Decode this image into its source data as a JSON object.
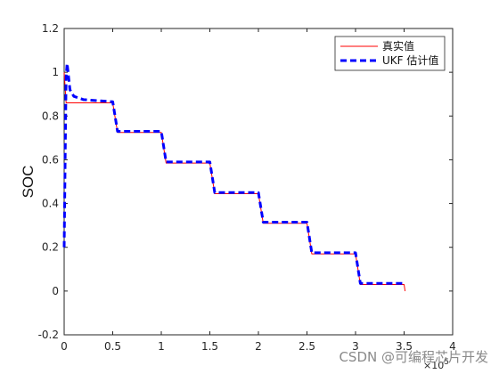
{
  "chart_data": {
    "type": "line",
    "ylabel": "SOC",
    "x_exponent_label": "×10",
    "x_exponent_power": "5",
    "xlim": [
      0,
      4
    ],
    "ylim": [
      -0.2,
      1.2
    ],
    "x_ticks": [
      "0",
      "0.5",
      "1",
      "1.5",
      "2",
      "2.5",
      "3",
      "3.5",
      "4"
    ],
    "y_ticks": [
      "-0.2",
      "0",
      "0.2",
      "0.4",
      "0.6",
      "0.8",
      "1",
      "1.2"
    ],
    "grid": false,
    "legend_position": "top-right",
    "series": [
      {
        "name": "真实值",
        "color": "#ff0000",
        "style": "solid",
        "points": [
          [
            0,
            1.0
          ],
          [
            0.02,
            0.86
          ],
          [
            0.5,
            0.86
          ],
          [
            0.55,
            0.725
          ],
          [
            1.0,
            0.725
          ],
          [
            1.05,
            0.585
          ],
          [
            1.5,
            0.585
          ],
          [
            1.55,
            0.445
          ],
          [
            2.0,
            0.445
          ],
          [
            2.05,
            0.31
          ],
          [
            2.5,
            0.31
          ],
          [
            2.55,
            0.17
          ],
          [
            3.0,
            0.17
          ],
          [
            3.05,
            0.03
          ],
          [
            3.5,
            0.03
          ],
          [
            3.51,
            0.0
          ]
        ]
      },
      {
        "name": "UKF 估计值",
        "color": "#0000ff",
        "style": "dashed",
        "points": [
          [
            0,
            0.2
          ],
          [
            0.01,
            0.6
          ],
          [
            0.02,
            0.98
          ],
          [
            0.03,
            1.04
          ],
          [
            0.04,
            1.0
          ],
          [
            0.06,
            0.92
          ],
          [
            0.1,
            0.89
          ],
          [
            0.2,
            0.875
          ],
          [
            0.5,
            0.865
          ],
          [
            0.55,
            0.73
          ],
          [
            1.0,
            0.73
          ],
          [
            1.05,
            0.59
          ],
          [
            1.5,
            0.59
          ],
          [
            1.55,
            0.45
          ],
          [
            2.0,
            0.45
          ],
          [
            2.05,
            0.315
          ],
          [
            2.5,
            0.315
          ],
          [
            2.55,
            0.175
          ],
          [
            3.0,
            0.175
          ],
          [
            3.05,
            0.035
          ],
          [
            3.5,
            0.035
          ],
          [
            3.51,
            0.03
          ]
        ]
      }
    ]
  },
  "watermark": "CSDN @可编程芯片开发"
}
